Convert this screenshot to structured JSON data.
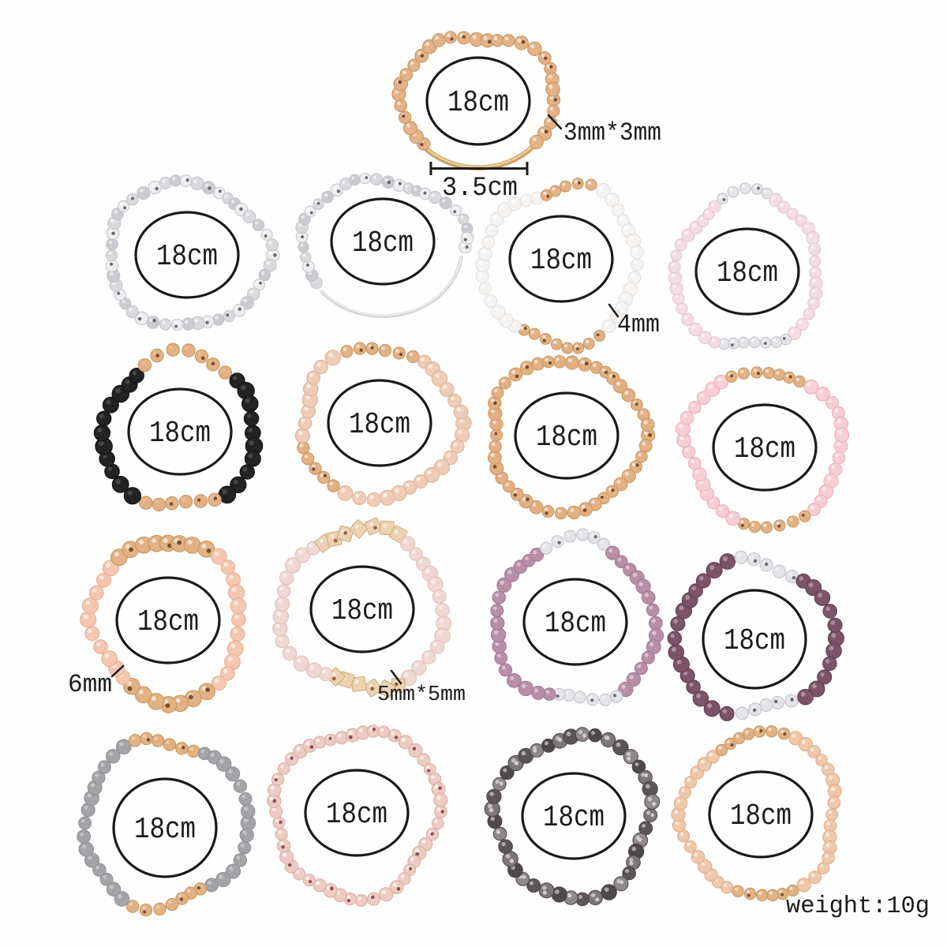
{
  "page": {
    "description": "bracelet set product photo with size annotations",
    "background": "#fefefe",
    "text_color": "#1b1b1b",
    "size_circle_label": "18cm"
  },
  "annotations": {
    "top_bead_size": "3mm*3mm",
    "tube_length": "3.5cm",
    "white_bead_size": "4mm",
    "peach_bead_size": "6mm",
    "cube_bead_size": "5mm*5mm",
    "weight": "weight:10g"
  },
  "palette": {
    "gold": {
      "fill": "#e2b184",
      "stroke": "#c3935e",
      "speck": "#6f4326"
    },
    "silver": {
      "fill": "#e4e4e8",
      "stroke": "#bfbfc6",
      "speck": "#5c5c64"
    },
    "gold_cube": {
      "fill": "#ecd2b2",
      "stroke": "#cfa877",
      "speck": "#8a5a30"
    }
  },
  "bracelets": [
    {
      "name": "rose-gold-beads-with-gold-tube",
      "label": "18cm",
      "bead_fill": "#e4b287",
      "bead_stroke": "#c3935e",
      "speck": "#6f4326",
      "bead_r": 8.2,
      "gloss": 0.6,
      "tube": {
        "from": 134,
        "to": 42,
        "skip": [
          38,
          138
        ],
        "color": "#cfa063",
        "highlight": "#efd9b4",
        "width": 6.5
      }
    },
    {
      "name": "silver-beads",
      "label": "18cm",
      "bead_fill": "#e6e6e9",
      "bead_stroke": "#c2c2c8",
      "speck": "#5c5c64",
      "bead_r": 7.6,
      "gloss": 0.6,
      "variant_fills": [
        "#ededf0",
        "#d9d9de",
        "#cbcbd1"
      ]
    },
    {
      "name": "silver-beads-with-silver-tube",
      "label": "18cm",
      "bead_fill": "#e6e6e9",
      "bead_stroke": "#c2c2c8",
      "speck": "#5c5c64",
      "bead_r": 7.2,
      "gloss": 0.6,
      "variant_fills": [
        "#ededf0",
        "#d8d8dd",
        "#c9c9cf"
      ],
      "tube": {
        "from": 140,
        "to": 6,
        "skip": [
          3,
          144
        ],
        "color": "#d4d4d9",
        "highlight": "#f6f6f8",
        "width": 4.5
      }
    },
    {
      "name": "white-beads-gold-accents",
      "label": "18cm",
      "bead_fill": "#f6f4f2",
      "bead_stroke": "#e1dcd8",
      "bead_r": 8.2,
      "gloss": 0.7,
      "accent": "gold",
      "accent_scale": 0.85,
      "accents": [
        [
          250,
          292
        ],
        [
          55,
          120
        ]
      ]
    },
    {
      "name": "light-pink-beads-silver-accents",
      "label": "18cm",
      "bead_fill": "#f3dce2",
      "bead_stroke": "#e2c2cc",
      "bead_r": 7.6,
      "gloss": 0.6,
      "accent": "silver",
      "accent_scale": 0.9,
      "accents": [
        [
          248,
          292
        ],
        [
          58,
          112
        ]
      ]
    },
    {
      "name": "black-beads-gold-accents",
      "label": "18cm",
      "bead_fill": "#232323",
      "bead_stroke": "#101010",
      "bead_r": 10,
      "gloss": 0.16,
      "accent": "gold",
      "accent_scale": 0.82,
      "accents": [
        [
          236,
          308
        ],
        [
          55,
          124
        ]
      ]
    },
    {
      "name": "champagne-beads-gold-accents",
      "label": "18cm",
      "bead_fill": "#efccb5",
      "bead_stroke": "#dcae92",
      "bead_r": 9,
      "gloss": 0.6,
      "accent": "gold",
      "accent_scale": 0.85,
      "accents": [
        [
          246,
          302
        ],
        [
          118,
          168
        ]
      ]
    },
    {
      "name": "gold-beads",
      "label": "18cm",
      "bead_fill": "#e3b082",
      "bead_stroke": "#c59760",
      "speck": "#6f4326",
      "bead_r": 8,
      "gloss": 0.6
    },
    {
      "name": "pink-beads-gold-accents",
      "label": "18cm",
      "bead_fill": "#f7ced5",
      "bead_stroke": "#e9abb7",
      "bead_r": 8.4,
      "gloss": 0.6,
      "accent": "gold",
      "accent_scale": 0.85,
      "accents": [
        [
          238,
          302
        ],
        [
          58,
          112
        ]
      ]
    },
    {
      "name": "peach-beads-gold-nugget-accents",
      "label": "18cm",
      "bead_fill": "#f5c7b0",
      "bead_stroke": "#e6aa90",
      "bead_r": 9.4,
      "gloss": 0.6,
      "accent": "gold",
      "accent_scale": 1.1,
      "accents": [
        [
          228,
          300
        ],
        [
          56,
          124
        ]
      ]
    },
    {
      "name": "pale-pink-beads-gold-cube-accents",
      "label": "18cm",
      "bead_fill": "#f0d8d2",
      "bead_stroke": "#dfbdb5",
      "bead_r": 9,
      "gloss": 0.55,
      "accent": "gold_cube",
      "accent_shape": "square",
      "accent_scale": 0.95,
      "accents": [
        [
          238,
          302
        ],
        [
          56,
          117
        ]
      ]
    },
    {
      "name": "mauve-beads-silver-accents",
      "label": "18cm",
      "bead_fill": "#b98fa8",
      "bead_stroke": "#a0738e",
      "bead_r": 8.5,
      "gloss": 0.45,
      "accent": "silver",
      "accent_scale": 0.88,
      "accents": [
        [
          248,
          295
        ],
        [
          60,
          110
        ]
      ]
    },
    {
      "name": "plum-beads-silver-accents",
      "label": "18cm",
      "bead_fill": "#7d5367",
      "bead_stroke": "#5e3b4e",
      "bead_r": 9.4,
      "gloss": 0.35,
      "accent": "silver",
      "accent_scale": 0.85,
      "accents": [
        [
          251,
          301
        ],
        [
          56,
          107
        ]
      ]
    },
    {
      "name": "gray-beads-gold-accents",
      "label": "18cm",
      "bead_fill": "#a3a4a7",
      "bead_stroke": "#8e8f92",
      "bead_r": 8.6,
      "gloss": 0.35,
      "accent": "gold",
      "accent_scale": 0.9,
      "accents": [
        [
          241,
          297
        ],
        [
          56,
          114
        ]
      ]
    },
    {
      "name": "rose-gold-metallic-beads",
      "label": "18cm",
      "bead_fill": "#edcbc2",
      "bead_stroke": "#d9ab9f",
      "speck": "#82424b",
      "speck_every": 2,
      "bead_r": 8,
      "gloss": 0.7
    },
    {
      "name": "gunmetal-crystal-beads",
      "label": "18cm",
      "bead_fill": "#6f696d",
      "bead_stroke": "#4a444a",
      "speck": "#d9d5d7",
      "speck_every": 2,
      "bead_r": 9,
      "gloss": 0.5,
      "variant_fills": [
        "#7d777b",
        "#5b5559",
        "#8f898d",
        "#4f484d"
      ]
    },
    {
      "name": "champagne-beads-small-gold-accents",
      "label": "18cm",
      "bead_fill": "#efc8ab",
      "bead_stroke": "#dfa884",
      "bead_r": 8,
      "gloss": 0.6,
      "accent": "gold",
      "accent_scale": 0.9,
      "accents": [
        [
          232,
          287
        ],
        [
          62,
          108
        ]
      ]
    }
  ]
}
